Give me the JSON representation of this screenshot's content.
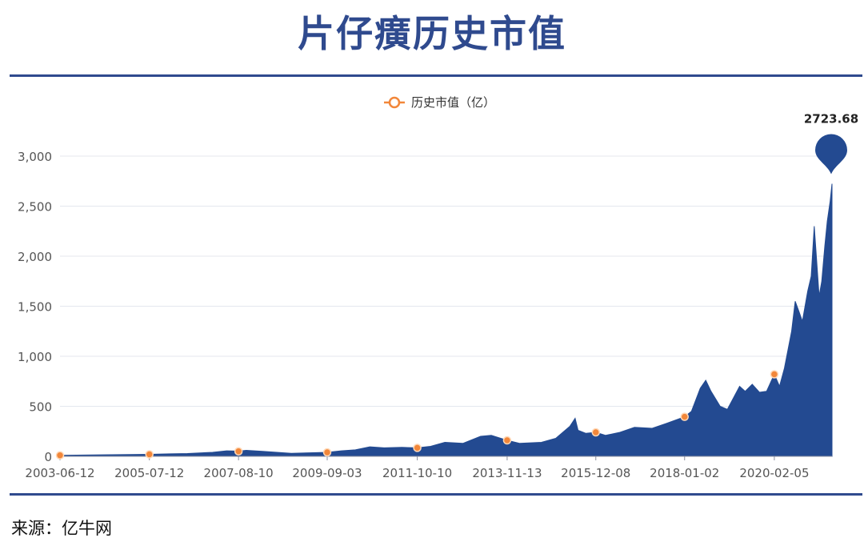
{
  "header": {
    "title": "片仔癀历史市值"
  },
  "footer": {
    "source": "来源：亿牛网"
  },
  "colors": {
    "accent": "#2f4a8e",
    "area": "#234a91",
    "marker": "#f2873a",
    "grid": "#e4e7ee",
    "axis_text": "#555555"
  },
  "chart_data": {
    "type": "area",
    "legend": {
      "label": "历史市值（亿）",
      "placement": "top-center"
    },
    "xlabel": "",
    "ylabel": "",
    "ylim": [
      0,
      3000
    ],
    "yticks": [
      "0",
      "500",
      "1,000",
      "1,500",
      "2,000",
      "2,500",
      "3,000"
    ],
    "ytick_values": [
      0,
      500,
      1000,
      1500,
      2000,
      2500,
      3000
    ],
    "xlim": [
      "2003-06-12",
      "2021-06-10"
    ],
    "xticks": [
      "2003-06-12",
      "2005-07-12",
      "2007-08-10",
      "2009-09-03",
      "2011-10-10",
      "2013-11-13",
      "2015-12-08",
      "2018-01-02",
      "2020-02-05"
    ],
    "grid": true,
    "peak_label": {
      "date": "2021-06-10",
      "value": "2723.68"
    },
    "markers": [
      {
        "date": "2003-06-12",
        "value": 10
      },
      {
        "date": "2005-07-12",
        "value": 20
      },
      {
        "date": "2007-08-10",
        "value": 50
      },
      {
        "date": "2009-09-03",
        "value": 40
      },
      {
        "date": "2011-10-10",
        "value": 85
      },
      {
        "date": "2013-11-13",
        "value": 160
      },
      {
        "date": "2015-12-08",
        "value": 240
      },
      {
        "date": "2018-01-02",
        "value": 395
      },
      {
        "date": "2020-02-05",
        "value": 820
      }
    ],
    "series": [
      {
        "name": "历史市值（亿）",
        "points": [
          [
            "2003-06-12",
            10
          ],
          [
            "2004-06-01",
            15
          ],
          [
            "2005-07-12",
            20
          ],
          [
            "2006-01-01",
            25
          ],
          [
            "2006-06-01",
            28
          ],
          [
            "2007-01-01",
            40
          ],
          [
            "2007-05-01",
            55
          ],
          [
            "2007-08-10",
            52
          ],
          [
            "2007-10-15",
            60
          ],
          [
            "2008-03-01",
            50
          ],
          [
            "2008-11-01",
            30
          ],
          [
            "2009-04-01",
            35
          ],
          [
            "2009-09-03",
            40
          ],
          [
            "2010-01-01",
            55
          ],
          [
            "2010-05-01",
            65
          ],
          [
            "2010-09-01",
            95
          ],
          [
            "2011-01-01",
            85
          ],
          [
            "2011-06-01",
            90
          ],
          [
            "2011-10-10",
            85
          ],
          [
            "2012-02-01",
            100
          ],
          [
            "2012-06-01",
            140
          ],
          [
            "2012-11-01",
            130
          ],
          [
            "2013-04-01",
            200
          ],
          [
            "2013-07-01",
            210
          ],
          [
            "2013-11-13",
            160
          ],
          [
            "2014-03-01",
            130
          ],
          [
            "2014-09-01",
            140
          ],
          [
            "2015-01-01",
            180
          ],
          [
            "2015-05-01",
            300
          ],
          [
            "2015-06-15",
            380
          ],
          [
            "2015-07-10",
            260
          ],
          [
            "2015-09-15",
            230
          ],
          [
            "2015-12-08",
            240
          ],
          [
            "2016-03-01",
            210
          ],
          [
            "2016-07-01",
            240
          ],
          [
            "2016-11-01",
            290
          ],
          [
            "2017-04-01",
            280
          ],
          [
            "2017-08-01",
            330
          ],
          [
            "2018-01-02",
            395
          ],
          [
            "2018-03-01",
            450
          ],
          [
            "2018-05-15",
            680
          ],
          [
            "2018-07-01",
            760
          ],
          [
            "2018-08-15",
            650
          ],
          [
            "2018-11-01",
            500
          ],
          [
            "2019-01-01",
            470
          ],
          [
            "2019-03-01",
            600
          ],
          [
            "2019-04-15",
            700
          ],
          [
            "2019-06-01",
            650
          ],
          [
            "2019-08-01",
            720
          ],
          [
            "2019-10-01",
            640
          ],
          [
            "2019-12-01",
            650
          ],
          [
            "2020-02-05",
            820
          ],
          [
            "2020-03-20",
            700
          ],
          [
            "2020-05-01",
            880
          ],
          [
            "2020-07-01",
            1250
          ],
          [
            "2020-08-01",
            1550
          ],
          [
            "2020-09-01",
            1450
          ],
          [
            "2020-10-01",
            1350
          ],
          [
            "2020-11-15",
            1650
          ],
          [
            "2020-12-15",
            1800
          ],
          [
            "2021-01-10",
            2300
          ],
          [
            "2021-01-25",
            2050
          ],
          [
            "2021-02-20",
            1600
          ],
          [
            "2021-03-15",
            1750
          ],
          [
            "2021-04-10",
            2100
          ],
          [
            "2021-05-01",
            2350
          ],
          [
            "2021-05-25",
            2550
          ],
          [
            "2021-06-10",
            2723.68
          ]
        ]
      }
    ]
  }
}
